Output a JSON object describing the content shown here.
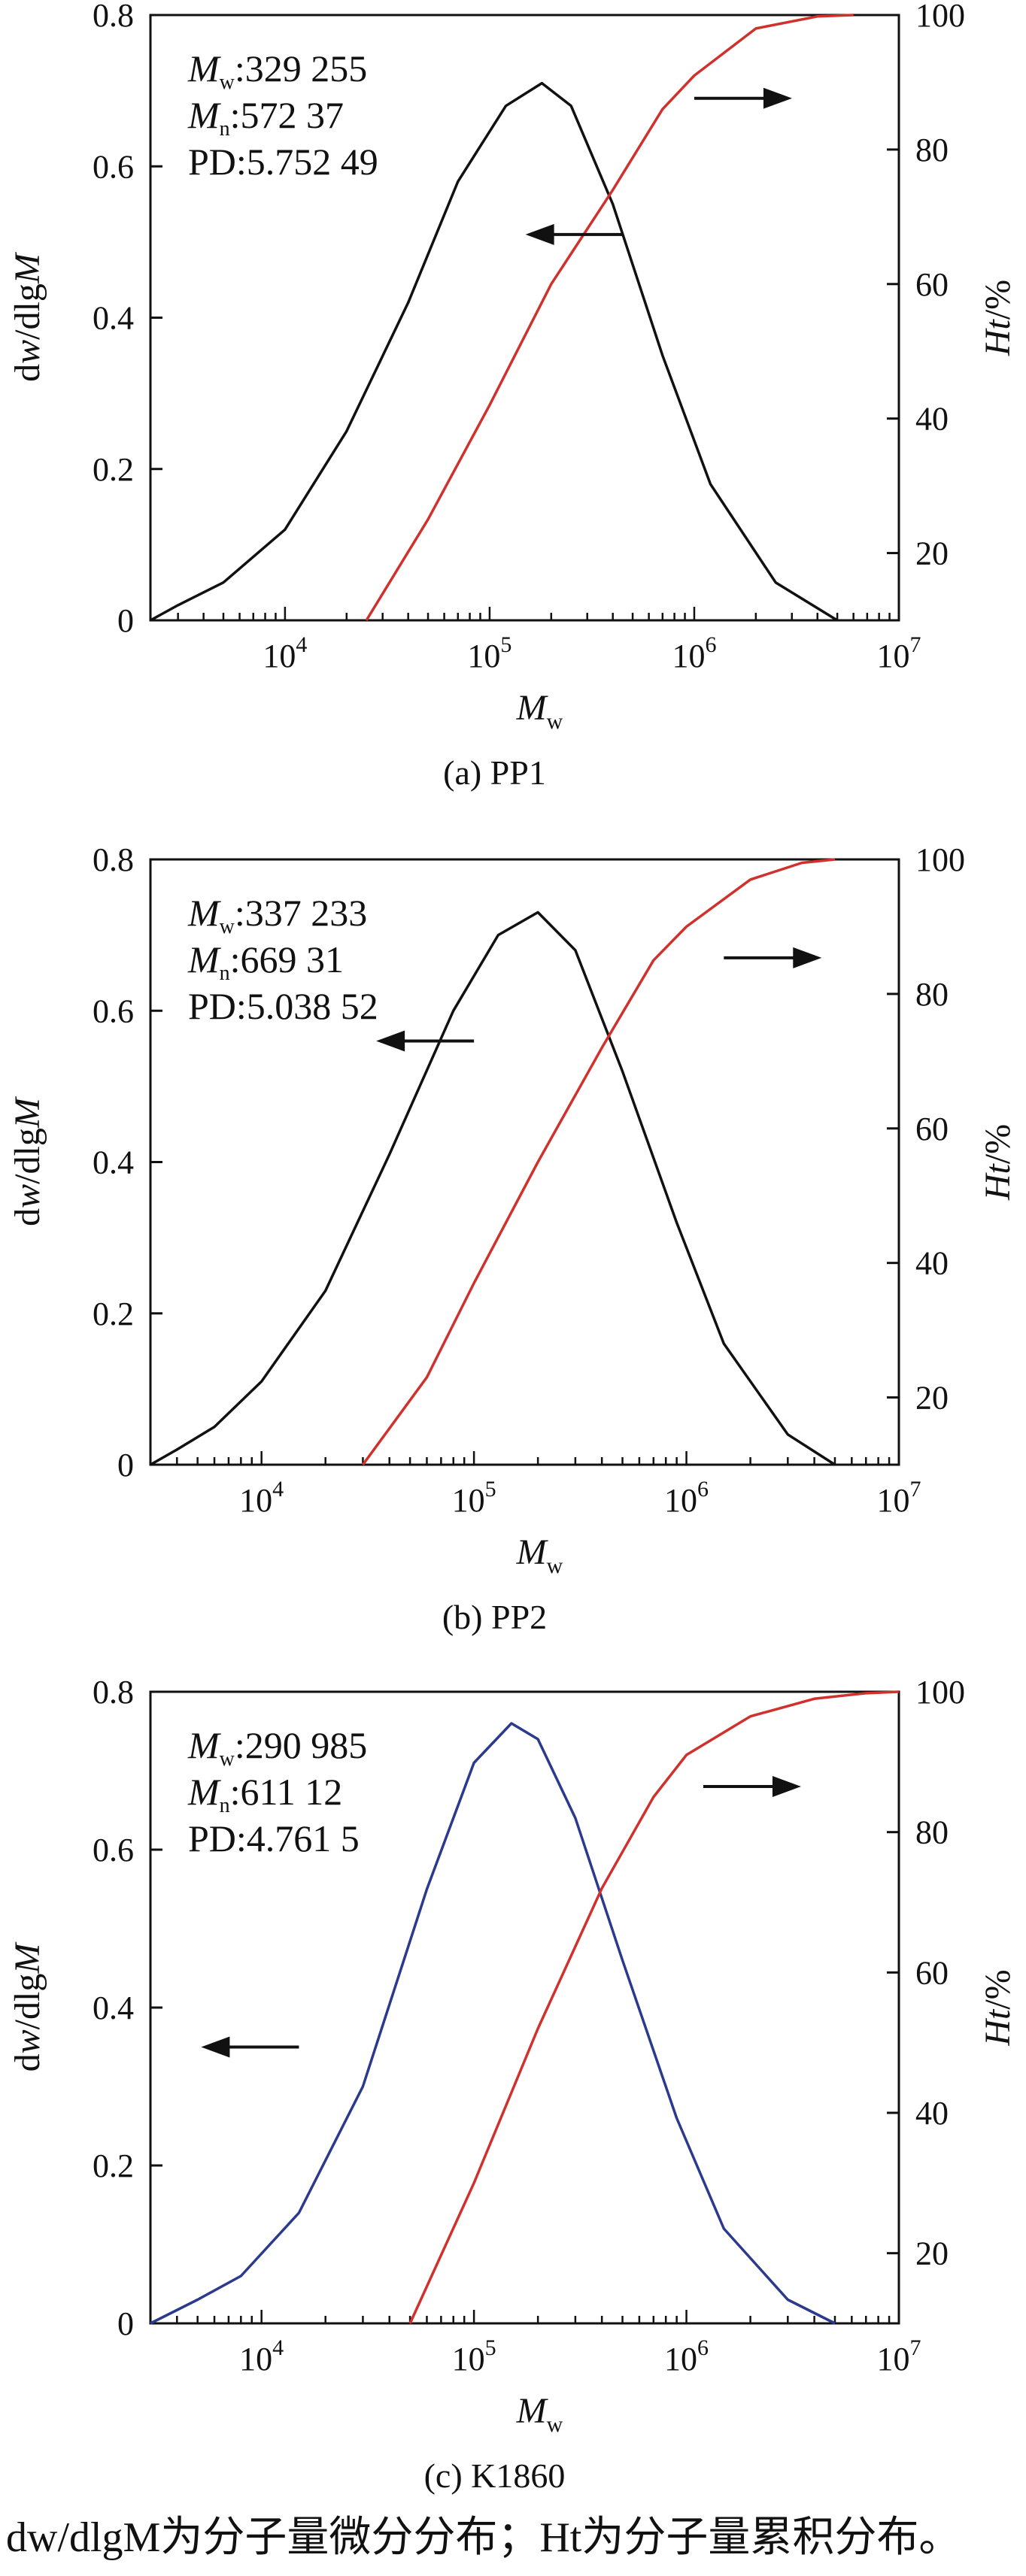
{
  "chart_data": [
    {
      "type": "line",
      "caption": "(a) PP1",
      "xlabel": "M",
      "xlabel_sub": "w",
      "ylabel": "dw/dlgM",
      "y2label": "Ht/%",
      "xscale": "log",
      "xlim": [
        2200,
        10000000
      ],
      "ylim": [
        0,
        0.8
      ],
      "y2lim": [
        10,
        100
      ],
      "x_ticks": [
        {
          "base": "10",
          "exp": "4",
          "value": 10000
        },
        {
          "base": "10",
          "exp": "5",
          "value": 100000
        },
        {
          "base": "10",
          "exp": "6",
          "value": 1000000
        },
        {
          "base": "10",
          "exp": "7",
          "value": 10000000
        }
      ],
      "y_ticks": [
        "0",
        "0.2",
        "0.4",
        "0.6",
        "0.8"
      ],
      "y2_ticks": [
        "20",
        "40",
        "60",
        "80",
        "100"
      ],
      "stats": [
        {
          "sym": "M",
          "sub": "w",
          "text": ":329 255"
        },
        {
          "sym": "M",
          "sub": "n",
          "text": ":572 37"
        },
        {
          "sym": "",
          "sub": "",
          "text": "PD:5.752 49"
        }
      ],
      "differential": {
        "color": "#111111",
        "x": [
          2200,
          3000,
          5000,
          10000,
          20000,
          40000,
          70000,
          120000,
          180000,
          250000,
          400000,
          700000,
          1200000,
          2500000,
          5000000
        ],
        "y": [
          0.0,
          0.02,
          0.05,
          0.12,
          0.25,
          0.42,
          0.58,
          0.68,
          0.71,
          0.68,
          0.55,
          0.35,
          0.18,
          0.05,
          0.0
        ]
      },
      "cumulative": {
        "color": "#d0312d",
        "x": [
          25000,
          50000,
          100000,
          200000,
          400000,
          700000,
          1000000,
          2000000,
          4000000,
          6000000
        ],
        "y": [
          10,
          25,
          42,
          60,
          74,
          86,
          91,
          98,
          99.8,
          100
        ]
      },
      "arrows": [
        {
          "points_to": "left",
          "at_x": 450000,
          "at_y": 0.51
        },
        {
          "points_to": "right",
          "at_x": 1000000,
          "at_y": 0.69
        }
      ]
    },
    {
      "type": "line",
      "caption": "(b) PP2",
      "xlabel": "M",
      "xlabel_sub": "w",
      "ylabel": "dw/dlgM",
      "y2label": "Ht/%",
      "xscale": "log",
      "xlim": [
        3000,
        10000000
      ],
      "ylim": [
        0,
        0.8
      ],
      "y2lim": [
        10,
        100
      ],
      "x_ticks": [
        {
          "base": "10",
          "exp": "4",
          "value": 10000
        },
        {
          "base": "10",
          "exp": "5",
          "value": 100000
        },
        {
          "base": "10",
          "exp": "6",
          "value": 1000000
        },
        {
          "base": "10",
          "exp": "7",
          "value": 10000000
        }
      ],
      "y_ticks": [
        "0",
        "0.2",
        "0.4",
        "0.6",
        "0.8"
      ],
      "y2_ticks": [
        "20",
        "40",
        "60",
        "80",
        "100"
      ],
      "stats": [
        {
          "sym": "M",
          "sub": "w",
          "text": ":337 233"
        },
        {
          "sym": "M",
          "sub": "n",
          "text": ":669 31"
        },
        {
          "sym": "",
          "sub": "",
          "text": "PD:5.038 52"
        }
      ],
      "differential": {
        "color": "#111111",
        "x": [
          3000,
          4000,
          6000,
          10000,
          20000,
          40000,
          80000,
          130000,
          200000,
          300000,
          500000,
          900000,
          1500000,
          3000000,
          5000000
        ],
        "y": [
          0.0,
          0.02,
          0.05,
          0.11,
          0.23,
          0.41,
          0.6,
          0.7,
          0.73,
          0.68,
          0.52,
          0.32,
          0.16,
          0.04,
          0.0
        ]
      },
      "cumulative": {
        "color": "#d0312d",
        "x": [
          30000,
          60000,
          100000,
          200000,
          400000,
          700000,
          1000000,
          2000000,
          3500000,
          5000000
        ],
        "y": [
          10,
          23,
          37,
          55,
          72,
          85,
          90,
          97,
          99.5,
          100
        ]
      },
      "arrows": [
        {
          "points_to": "left",
          "at_x": 100000,
          "at_y": 0.56
        },
        {
          "points_to": "right",
          "at_x": 1500000,
          "at_y": 0.67
        }
      ]
    },
    {
      "type": "line",
      "caption": "(c) K1860",
      "xlabel": "M",
      "xlabel_sub": "w",
      "ylabel": "dw/dlgM",
      "y2label": "Ht/%",
      "xscale": "log",
      "xlim": [
        3000,
        10000000
      ],
      "ylim": [
        0,
        0.8
      ],
      "y2lim": [
        10,
        100
      ],
      "x_ticks": [
        {
          "base": "10",
          "exp": "4",
          "value": 10000
        },
        {
          "base": "10",
          "exp": "5",
          "value": 100000
        },
        {
          "base": "10",
          "exp": "6",
          "value": 1000000
        },
        {
          "base": "10",
          "exp": "7",
          "value": 10000000
        }
      ],
      "y_ticks": [
        "0",
        "0.2",
        "0.4",
        "0.6",
        "0.8"
      ],
      "y2_ticks": [
        "20",
        "40",
        "60",
        "80",
        "100"
      ],
      "stats": [
        {
          "sym": "M",
          "sub": "w",
          "text": ":290 985"
        },
        {
          "sym": "M",
          "sub": "n",
          "text": ":611 12"
        },
        {
          "sym": "",
          "sub": "",
          "text": "PD:4.761 5"
        }
      ],
      "differential": {
        "color": "#2b3a8c",
        "x": [
          3000,
          5000,
          8000,
          15000,
          30000,
          60000,
          100000,
          150000,
          200000,
          300000,
          500000,
          900000,
          1500000,
          3000000,
          5000000
        ],
        "y": [
          0.0,
          0.03,
          0.06,
          0.14,
          0.3,
          0.55,
          0.71,
          0.76,
          0.74,
          0.64,
          0.46,
          0.26,
          0.12,
          0.03,
          0.0
        ]
      },
      "cumulative": {
        "color": "#d0312d",
        "x": [
          50000,
          100000,
          200000,
          400000,
          700000,
          1000000,
          2000000,
          4000000,
          7000000,
          10000000
        ],
        "y": [
          10,
          30,
          52,
          72,
          85,
          91,
          96.5,
          99,
          99.8,
          100
        ]
      },
      "arrows": [
        {
          "points_to": "left",
          "at_x": 15000,
          "at_y": 0.35
        },
        {
          "points_to": "right",
          "at_x": 1200000,
          "at_y": 0.68
        }
      ]
    }
  ],
  "footnote": "dw/dlgM为分子量微分分布；Ht为分子量累积分布。"
}
